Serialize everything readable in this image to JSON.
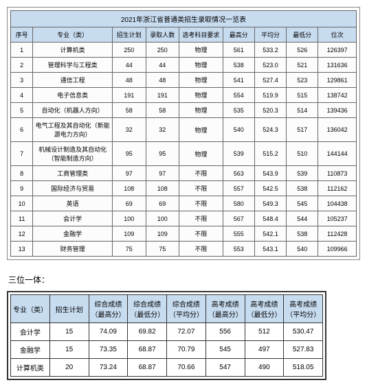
{
  "table1": {
    "title": "2021年浙江省普通类招生录取情况一览表",
    "headers": [
      "序号",
      "专业（类）",
      "招生计划",
      "录取人数",
      "选考科目要求",
      "最高分",
      "平均分",
      "最低分",
      "位次"
    ],
    "rows": [
      [
        "1",
        "计算机类",
        "250",
        "250",
        "物理",
        "561",
        "533.2",
        "526",
        "126397"
      ],
      [
        "2",
        "管理科学与工程类",
        "44",
        "44",
        "物理",
        "538",
        "523.0",
        "521",
        "131636"
      ],
      [
        "3",
        "通信工程",
        "48",
        "48",
        "物理",
        "541",
        "527.4",
        "523",
        "129861"
      ],
      [
        "4",
        "电子信息类",
        "191",
        "191",
        "物理",
        "554",
        "519.9",
        "515",
        "138742"
      ],
      [
        "5",
        "自动化（机器人方向）",
        "58",
        "58",
        "物理",
        "535",
        "520.3",
        "514",
        "139436"
      ],
      [
        "6",
        "电气工程及其自动化（新能源电力方向）",
        "32",
        "32",
        "物理",
        "540",
        "524.3",
        "517",
        "136042"
      ],
      [
        "7",
        "机械设计制造及其自动化（智能制造方向）",
        "95",
        "95",
        "物理",
        "539",
        "515.2",
        "510",
        "144144"
      ],
      [
        "8",
        "工商管理类",
        "97",
        "97",
        "不限",
        "563",
        "543.9",
        "539",
        "110873"
      ],
      [
        "9",
        "国际经济与贸易",
        "108",
        "108",
        "不限",
        "557",
        "542.5",
        "538",
        "112162"
      ],
      [
        "10",
        "英语",
        "69",
        "69",
        "不限",
        "580",
        "549.3",
        "545",
        "104438"
      ],
      [
        "11",
        "会计学",
        "100",
        "100",
        "不限",
        "567",
        "548.4",
        "544",
        "105237"
      ],
      [
        "12",
        "金融学",
        "109",
        "109",
        "不限",
        "555",
        "542.1",
        "538",
        "112428"
      ],
      [
        "13",
        "财务管理",
        "75",
        "75",
        "不限",
        "553",
        "543.1",
        "540",
        "109966"
      ]
    ],
    "col_widths": [
      "28px",
      "100px",
      "42px",
      "42px",
      "55px",
      "40px",
      "40px",
      "40px",
      "48px"
    ]
  },
  "section_label": "三位一体：",
  "table2": {
    "headers": [
      "专业（类）",
      "招生计划",
      "综合成绩（最高分）",
      "综合成绩（最低分）",
      "综合成绩（平均分）",
      "高考成绩（最高分）",
      "高考成绩（最低分）",
      "高考成绩（平均分）"
    ],
    "rows": [
      [
        "会计学",
        "15",
        "74.09",
        "69.82",
        "72.07",
        "556",
        "512",
        "530.47"
      ],
      [
        "金融学",
        "15",
        "73.35",
        "68.87",
        "70.79",
        "545",
        "497",
        "527.83"
      ],
      [
        "计算机类",
        "20",
        "73.24",
        "68.87",
        "70.66",
        "547",
        "490",
        "518.05"
      ]
    ]
  }
}
